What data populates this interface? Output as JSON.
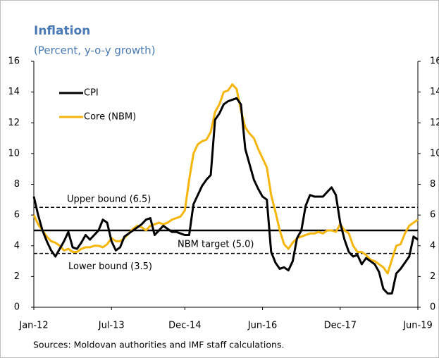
{
  "chart_data": {
    "type": "line",
    "title": "Inflation",
    "subtitle": "(Percent, y-o-y growth)",
    "source": "Sources: Moldovan authorities and IMF staff calculations.",
    "categories": [
      "Jan-12",
      null,
      null,
      null,
      null,
      null,
      null,
      null,
      null,
      null,
      null,
      null,
      null,
      null,
      null,
      null,
      null,
      null,
      "Jul-13",
      null,
      null,
      null,
      null,
      null,
      null,
      null,
      null,
      null,
      null,
      null,
      null,
      null,
      null,
      null,
      null,
      "Dec-14",
      null,
      null,
      null,
      null,
      null,
      null,
      null,
      null,
      null,
      null,
      null,
      null,
      null,
      null,
      null,
      null,
      null,
      "Jun-16",
      null,
      null,
      null,
      null,
      null,
      null,
      null,
      null,
      null,
      null,
      null,
      null,
      null,
      null,
      null,
      null,
      null,
      "Dec-17",
      null,
      null,
      null,
      null,
      null,
      null,
      null,
      null,
      null,
      null,
      null,
      null,
      null,
      null,
      null,
      null,
      null,
      "Jun-19"
    ],
    "series": [
      {
        "name": "CPI",
        "color": "#000000",
        "values": [
          7.2,
          6.0,
          5.0,
          4.3,
          3.7,
          3.3,
          3.8,
          4.3,
          4.9,
          3.9,
          3.8,
          4.2,
          4.7,
          4.4,
          4.7,
          5.0,
          5.7,
          5.5,
          4.3,
          3.7,
          3.9,
          4.6,
          4.8,
          5.0,
          5.2,
          5.4,
          5.7,
          5.8,
          4.7,
          5.0,
          5.3,
          5.1,
          4.9,
          4.9,
          4.8,
          4.7,
          4.7,
          6.7,
          7.3,
          7.9,
          8.3,
          8.6,
          12.2,
          12.6,
          13.2,
          13.4,
          13.5,
          13.6,
          13.2,
          10.3,
          9.3,
          8.3,
          7.7,
          7.2,
          7.0,
          3.6,
          2.9,
          2.5,
          2.6,
          2.4,
          3.0,
          4.5,
          5.0,
          6.6,
          7.3,
          7.2,
          7.2,
          7.2,
          7.5,
          7.8,
          7.3,
          5.5,
          4.4,
          3.6,
          3.3,
          3.4,
          2.8,
          3.2,
          3.0,
          2.8,
          2.3,
          1.2,
          0.9,
          0.9,
          2.2,
          2.5,
          2.9,
          3.3,
          4.6,
          4.4
        ]
      },
      {
        "name": "Core (NBM)",
        "color": "#f5b50a",
        "values": [
          6.0,
          5.4,
          5.0,
          4.6,
          4.3,
          4.2,
          4.0,
          3.7,
          3.8,
          3.6,
          3.6,
          3.8,
          3.9,
          3.9,
          4.0,
          4.0,
          3.9,
          4.1,
          4.5,
          4.3,
          4.3,
          4.5,
          4.8,
          5.1,
          5.3,
          5.2,
          5.0,
          5.3,
          5.4,
          5.5,
          5.4,
          5.5,
          5.7,
          5.8,
          5.9,
          6.3,
          8.3,
          10.0,
          10.6,
          10.8,
          10.9,
          11.4,
          12.7,
          13.2,
          14.0,
          14.1,
          14.5,
          14.2,
          12.8,
          11.7,
          11.3,
          11.0,
          10.3,
          9.7,
          9.1,
          7.3,
          6.2,
          5.0,
          4.1,
          3.8,
          4.2,
          4.5,
          4.6,
          4.7,
          4.8,
          4.8,
          4.9,
          4.8,
          5.0,
          5.0,
          4.9,
          5.4,
          5.0,
          4.8,
          4.0,
          3.6,
          3.6,
          3.4,
          3.1,
          3.0,
          2.8,
          2.6,
          2.2,
          3.1,
          4.0,
          4.1,
          4.8,
          5.3,
          5.5,
          5.7
        ]
      }
    ],
    "reference_lines": [
      {
        "label": "Upper bound  (6.5)",
        "value": 6.5,
        "style": "dashed"
      },
      {
        "label": "NBM target (5.0)",
        "value": 5.0,
        "style": "solid"
      },
      {
        "label": "Lower bound (3.5)",
        "value": 3.5,
        "style": "dashed"
      }
    ],
    "ylim": [
      0,
      16
    ],
    "yticks": [
      0,
      2,
      4,
      6,
      8,
      10,
      12,
      14,
      16
    ],
    "y2lim": [
      0,
      16
    ],
    "y2ticks": [
      0,
      2,
      4,
      6,
      8,
      10,
      12,
      14,
      16
    ],
    "legend": "upper left",
    "grid": false
  }
}
